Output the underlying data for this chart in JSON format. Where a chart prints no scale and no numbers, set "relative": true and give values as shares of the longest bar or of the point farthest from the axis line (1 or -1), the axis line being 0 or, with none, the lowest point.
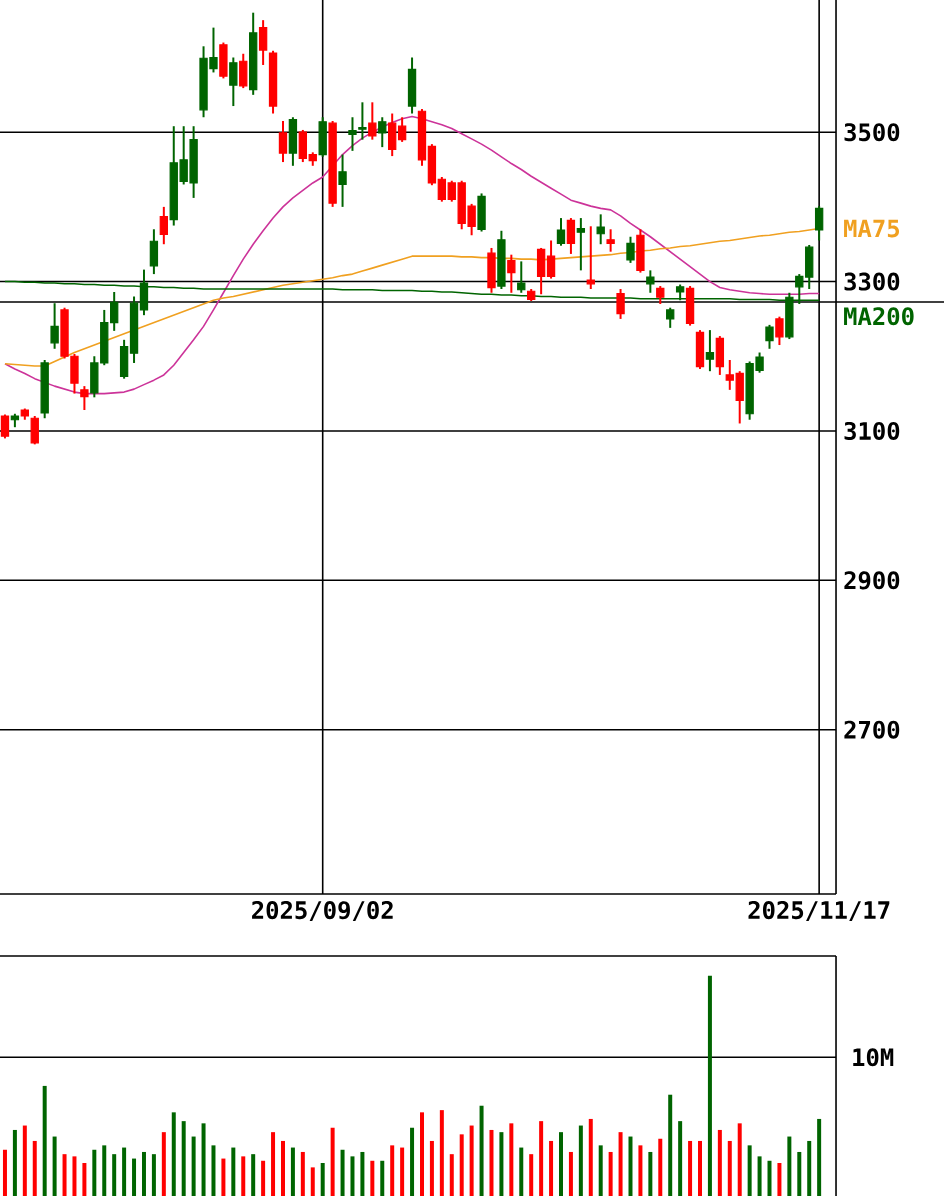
{
  "chart_data": [
    {
      "type": "candlestick",
      "categories": [
        null,
        null,
        null,
        null,
        null,
        null,
        null,
        null,
        null,
        null,
        null,
        null,
        null,
        null,
        null,
        null,
        null,
        null,
        null,
        null,
        null,
        null,
        null,
        null,
        null,
        null,
        null,
        null,
        null,
        null,
        null,
        null,
        "2025/09/02",
        null,
        null,
        null,
        null,
        null,
        null,
        null,
        null,
        null,
        null,
        null,
        null,
        null,
        null,
        null,
        null,
        null,
        null,
        null,
        null,
        null,
        null,
        null,
        null,
        null,
        null,
        null,
        null,
        null,
        null,
        null,
        null,
        null,
        null,
        null,
        null,
        null,
        null,
        null,
        null,
        null,
        null,
        null,
        null,
        null,
        null,
        null,
        null,
        null,
        "2025/11/17"
      ],
      "ohlc": [
        [
          3120,
          3122,
          3090,
          3093
        ],
        [
          3115,
          3123,
          3105,
          3120
        ],
        [
          3128,
          3130,
          3115,
          3120
        ],
        [
          3117,
          3120,
          3082,
          3084
        ],
        [
          3124,
          3195,
          3117,
          3191
        ],
        [
          3218,
          3271,
          3210,
          3240
        ],
        [
          3262,
          3265,
          3197,
          3200
        ],
        [
          3200,
          3203,
          3150,
          3164
        ],
        [
          3155,
          3160,
          3128,
          3146
        ],
        [
          3151,
          3200,
          3145,
          3191
        ],
        [
          3191,
          3262,
          3188,
          3245
        ],
        [
          3245,
          3286,
          3234,
          3272
        ],
        [
          3173,
          3222,
          3170,
          3213
        ],
        [
          3204,
          3280,
          3191,
          3271
        ],
        [
          3262,
          3316,
          3255,
          3298
        ],
        [
          3321,
          3370,
          3310,
          3354
        ],
        [
          3387,
          3400,
          3350,
          3363
        ],
        [
          3383,
          3508,
          3375,
          3459
        ],
        [
          3434,
          3508,
          3430,
          3463
        ],
        [
          3432,
          3508,
          3412,
          3490
        ],
        [
          3530,
          3615,
          3520,
          3599
        ],
        [
          3585,
          3640,
          3580,
          3600
        ],
        [
          3617,
          3620,
          3572,
          3575
        ],
        [
          3563,
          3600,
          3535,
          3593
        ],
        [
          3595,
          3605,
          3559,
          3562
        ],
        [
          3557,
          3660,
          3550,
          3633
        ],
        [
          3640,
          3650,
          3590,
          3610
        ],
        [
          3606,
          3609,
          3525,
          3535
        ],
        [
          3499,
          3515,
          3460,
          3472
        ],
        [
          3472,
          3520,
          3455,
          3517
        ],
        [
          3500,
          3503,
          3460,
          3465
        ],
        [
          3470,
          3473,
          3455,
          3462
        ],
        [
          3470,
          3520,
          3467,
          3514
        ],
        [
          3512,
          3515,
          3400,
          3405
        ],
        [
          3430,
          3470,
          3400,
          3447
        ],
        [
          3497,
          3520,
          3475,
          3502
        ],
        [
          3504,
          3540,
          3490,
          3506
        ],
        [
          3512,
          3540,
          3490,
          3495
        ],
        [
          3499,
          3520,
          3480,
          3514
        ],
        [
          3512,
          3525,
          3468,
          3477
        ],
        [
          3508,
          3520,
          3487,
          3490
        ],
        [
          3535,
          3600,
          3525,
          3584
        ],
        [
          3528,
          3531,
          3455,
          3463
        ],
        [
          3481,
          3484,
          3429,
          3432
        ],
        [
          3437,
          3440,
          3407,
          3410
        ],
        [
          3432,
          3435,
          3407,
          3410
        ],
        [
          3432,
          3435,
          3370,
          3378
        ],
        [
          3401,
          3404,
          3362,
          3374
        ],
        [
          3370,
          3418,
          3367,
          3414
        ],
        [
          3338,
          3345,
          3285,
          3292
        ],
        [
          3294,
          3368,
          3290,
          3356
        ],
        [
          3328,
          3336,
          3285,
          3312
        ],
        [
          3289,
          3327,
          3285,
          3298
        ],
        [
          3287,
          3290,
          3274,
          3276
        ],
        [
          3343,
          3345,
          3283,
          3307
        ],
        [
          3334,
          3355,
          3304,
          3307
        ],
        [
          3351,
          3385,
          3348,
          3369
        ],
        [
          3382,
          3385,
          3337,
          3351
        ],
        [
          3366,
          3385,
          3315,
          3371
        ],
        [
          3302,
          3374,
          3290,
          3297
        ],
        [
          3364,
          3390,
          3350,
          3373
        ],
        [
          3356,
          3370,
          3340,
          3351
        ],
        [
          3284,
          3290,
          3250,
          3257
        ],
        [
          3329,
          3360,
          3325,
          3351
        ],
        [
          3362,
          3370,
          3312,
          3315
        ],
        [
          3297,
          3315,
          3285,
          3306
        ],
        [
          3291,
          3294,
          3270,
          3279
        ],
        [
          3250,
          3265,
          3238,
          3262
        ],
        [
          3286,
          3296,
          3275,
          3293
        ],
        [
          3291,
          3294,
          3241,
          3244
        ],
        [
          3232,
          3235,
          3183,
          3186
        ],
        [
          3196,
          3235,
          3180,
          3205
        ],
        [
          3224,
          3227,
          3175,
          3186
        ],
        [
          3175,
          3195,
          3155,
          3168
        ],
        [
          3177,
          3180,
          3110,
          3141
        ],
        [
          3123,
          3193,
          3115,
          3190
        ],
        [
          3181,
          3205,
          3178,
          3199
        ],
        [
          3221,
          3242,
          3210,
          3239
        ],
        [
          3250,
          3253,
          3215,
          3226
        ],
        [
          3226,
          3285,
          3223,
          3279
        ],
        [
          3293,
          3310,
          3270,
          3307
        ],
        [
          3306,
          3349,
          3290,
          3346
        ],
        [
          3369,
          3401,
          3355,
          3398
        ]
      ],
      "colors": [
        "#ff0000",
        "#006400",
        "#ff0000",
        "#ff0000",
        "#006400",
        "#006400",
        "#ff0000",
        "#ff0000",
        "#ff0000",
        "#006400",
        "#006400",
        "#006400",
        "#006400",
        "#006400",
        "#006400",
        "#006400",
        "#ff0000",
        "#006400",
        "#006400",
        "#006400",
        "#006400",
        "#006400",
        "#ff0000",
        "#006400",
        "#ff0000",
        "#006400",
        "#ff0000",
        "#ff0000",
        "#ff0000",
        "#006400",
        "#ff0000",
        "#ff0000",
        "#006400",
        "#ff0000",
        "#006400",
        "#006400",
        "#006400",
        "#ff0000",
        "#006400",
        "#ff0000",
        "#ff0000",
        "#006400",
        "#ff0000",
        "#ff0000",
        "#ff0000",
        "#ff0000",
        "#ff0000",
        "#ff0000",
        "#006400",
        "#ff0000",
        "#006400",
        "#ff0000",
        "#006400",
        "#ff0000",
        "#ff0000",
        "#ff0000",
        "#006400",
        "#ff0000",
        "#006400",
        "#ff0000",
        "#006400",
        "#ff0000",
        "#ff0000",
        "#006400",
        "#ff0000",
        "#006400",
        "#ff0000",
        "#006400",
        "#006400",
        "#ff0000",
        "#ff0000",
        "#006400",
        "#ff0000",
        "#ff0000",
        "#ff0000",
        "#006400",
        "#006400",
        "#006400",
        "#ff0000",
        "#006400",
        "#006400",
        "#006400",
        "#006400"
      ],
      "ylim": [
        2480,
        3677
      ],
      "yticks": [
        2700,
        2900,
        3100,
        3300,
        3500
      ],
      "grid": true,
      "series": [
        {
          "type": "line",
          "color": "#cc3399",
          "values": [
            3190,
            3183,
            3177,
            3170,
            3165,
            3160,
            3156,
            3152,
            3150,
            3150,
            3150,
            3151,
            3152,
            3156,
            3162,
            3168,
            3175,
            3188,
            3205,
            3222,
            3240,
            3262,
            3285,
            3308,
            3330,
            3350,
            3368,
            3385,
            3400,
            3412,
            3422,
            3432,
            3440,
            3455,
            3470,
            3482,
            3492,
            3500,
            3507,
            3513,
            3518,
            3521,
            3518,
            3514,
            3510,
            3505,
            3498,
            3491,
            3484,
            3476,
            3467,
            3458,
            3450,
            3441,
            3433,
            3425,
            3417,
            3409,
            3405,
            3401,
            3398,
            3396,
            3388,
            3378,
            3369,
            3360,
            3350,
            3340,
            3330,
            3320,
            3310,
            3300,
            3292,
            3289,
            3287,
            3285,
            3284,
            3283,
            3283,
            3283,
            3283,
            3284,
            3284
          ]
        },
        {
          "type": "line",
          "name": "MA75",
          "color": "#f0a020",
          "values": [
            3190,
            3189,
            3188,
            3187,
            3187,
            3193,
            3199,
            3205,
            3210,
            3215,
            3220,
            3225,
            3230,
            3235,
            3240,
            3245,
            3250,
            3255,
            3260,
            3265,
            3270,
            3275,
            3278,
            3280,
            3283,
            3286,
            3289,
            3292,
            3295,
            3297,
            3299,
            3301,
            3303,
            3305,
            3308,
            3310,
            3314,
            3318,
            3322,
            3326,
            3330,
            3334,
            3334,
            3334,
            3334,
            3334,
            3333,
            3333,
            3332,
            3332,
            3331,
            3331,
            3330,
            3330,
            3329,
            3330,
            3331,
            3332,
            3333,
            3334,
            3335,
            3336,
            3338,
            3339,
            3341,
            3342,
            3344,
            3345,
            3347,
            3348,
            3350,
            3352,
            3354,
            3355,
            3357,
            3359,
            3361,
            3362,
            3364,
            3366,
            3367,
            3369,
            3371
          ]
        },
        {
          "type": "line",
          "name": "MA200",
          "color": "#006400",
          "values": [
            3300,
            3300,
            3299,
            3299,
            3298,
            3298,
            3297,
            3297,
            3296,
            3296,
            3295,
            3295,
            3294,
            3294,
            3293,
            3293,
            3292,
            3292,
            3291,
            3291,
            3290,
            3290,
            3290,
            3290,
            3290,
            3290,
            3290,
            3290,
            3290,
            3290,
            3290,
            3290,
            3290,
            3290,
            3289,
            3289,
            3289,
            3289,
            3288,
            3288,
            3288,
            3288,
            3287,
            3287,
            3286,
            3286,
            3285,
            3284,
            3283,
            3283,
            3282,
            3282,
            3281,
            3281,
            3280,
            3280,
            3279,
            3279,
            3279,
            3278,
            3278,
            3278,
            3278,
            3278,
            3277,
            3277,
            3277,
            3277,
            3277,
            3277,
            3277,
            3277,
            3277,
            3277,
            3276,
            3276,
            3276,
            3276,
            3275,
            3275,
            3275,
            3275,
            3275
          ]
        }
      ]
    },
    {
      "type": "bar",
      "relative": true,
      "categories": [
        null,
        null,
        null,
        null,
        null,
        null,
        null,
        null,
        null,
        null,
        null,
        null,
        null,
        null,
        null,
        null,
        null,
        null,
        null,
        null,
        null,
        null,
        null,
        null,
        null,
        null,
        null,
        null,
        null,
        null,
        null,
        null,
        null,
        null,
        null,
        null,
        null,
        null,
        null,
        null,
        null,
        null,
        null,
        null,
        null,
        null,
        null,
        null,
        null,
        null,
        null,
        null,
        null,
        null,
        null,
        null,
        null,
        null,
        null,
        null,
        null,
        null,
        null,
        null,
        null,
        null,
        null,
        null,
        null,
        null,
        null,
        null,
        null,
        null,
        null,
        null,
        null,
        null,
        null,
        null,
        null,
        null,
        null
      ],
      "values": [
        0.21,
        0.3,
        0.32,
        0.25,
        0.5,
        0.27,
        0.19,
        0.18,
        0.15,
        0.21,
        0.23,
        0.19,
        0.22,
        0.17,
        0.2,
        0.19,
        0.29,
        0.38,
        0.34,
        0.27,
        0.33,
        0.23,
        0.17,
        0.22,
        0.18,
        0.19,
        0.16,
        0.29,
        0.25,
        0.22,
        0.2,
        0.13,
        0.15,
        0.31,
        0.21,
        0.18,
        0.2,
        0.16,
        0.16,
        0.23,
        0.22,
        0.31,
        0.38,
        0.25,
        0.39,
        0.19,
        0.28,
        0.32,
        0.41,
        0.3,
        0.29,
        0.33,
        0.22,
        0.19,
        0.34,
        0.25,
        0.29,
        0.2,
        0.32,
        0.35,
        0.23,
        0.2,
        0.29,
        0.27,
        0.23,
        0.2,
        0.26,
        0.46,
        0.34,
        0.25,
        0.25,
        1,
        0.3,
        0.25,
        0.33,
        0.23,
        0.18,
        0.16,
        0.15,
        0.27,
        0.2,
        0.25,
        0.35
      ],
      "colors": [
        "#ff0000",
        "#006400",
        "#ff0000",
        "#ff0000",
        "#006400",
        "#006400",
        "#ff0000",
        "#ff0000",
        "#ff0000",
        "#006400",
        "#006400",
        "#006400",
        "#006400",
        "#006400",
        "#006400",
        "#006400",
        "#ff0000",
        "#006400",
        "#006400",
        "#006400",
        "#006400",
        "#006400",
        "#ff0000",
        "#006400",
        "#ff0000",
        "#006400",
        "#ff0000",
        "#ff0000",
        "#ff0000",
        "#006400",
        "#ff0000",
        "#ff0000",
        "#006400",
        "#ff0000",
        "#006400",
        "#006400",
        "#006400",
        "#ff0000",
        "#006400",
        "#ff0000",
        "#ff0000",
        "#006400",
        "#ff0000",
        "#ff0000",
        "#ff0000",
        "#ff0000",
        "#ff0000",
        "#ff0000",
        "#006400",
        "#ff0000",
        "#006400",
        "#ff0000",
        "#006400",
        "#ff0000",
        "#ff0000",
        "#ff0000",
        "#006400",
        "#ff0000",
        "#006400",
        "#ff0000",
        "#006400",
        "#ff0000",
        "#ff0000",
        "#006400",
        "#ff0000",
        "#006400",
        "#ff0000",
        "#006400",
        "#006400",
        "#ff0000",
        "#ff0000",
        "#006400",
        "#ff0000",
        "#ff0000",
        "#ff0000",
        "#006400",
        "#006400",
        "#006400",
        "#ff0000",
        "#006400",
        "#006400",
        "#006400",
        "#006400"
      ],
      "ref_lines": [
        {
          "axis": "y",
          "value": 0.63,
          "label": "10M"
        }
      ]
    }
  ]
}
